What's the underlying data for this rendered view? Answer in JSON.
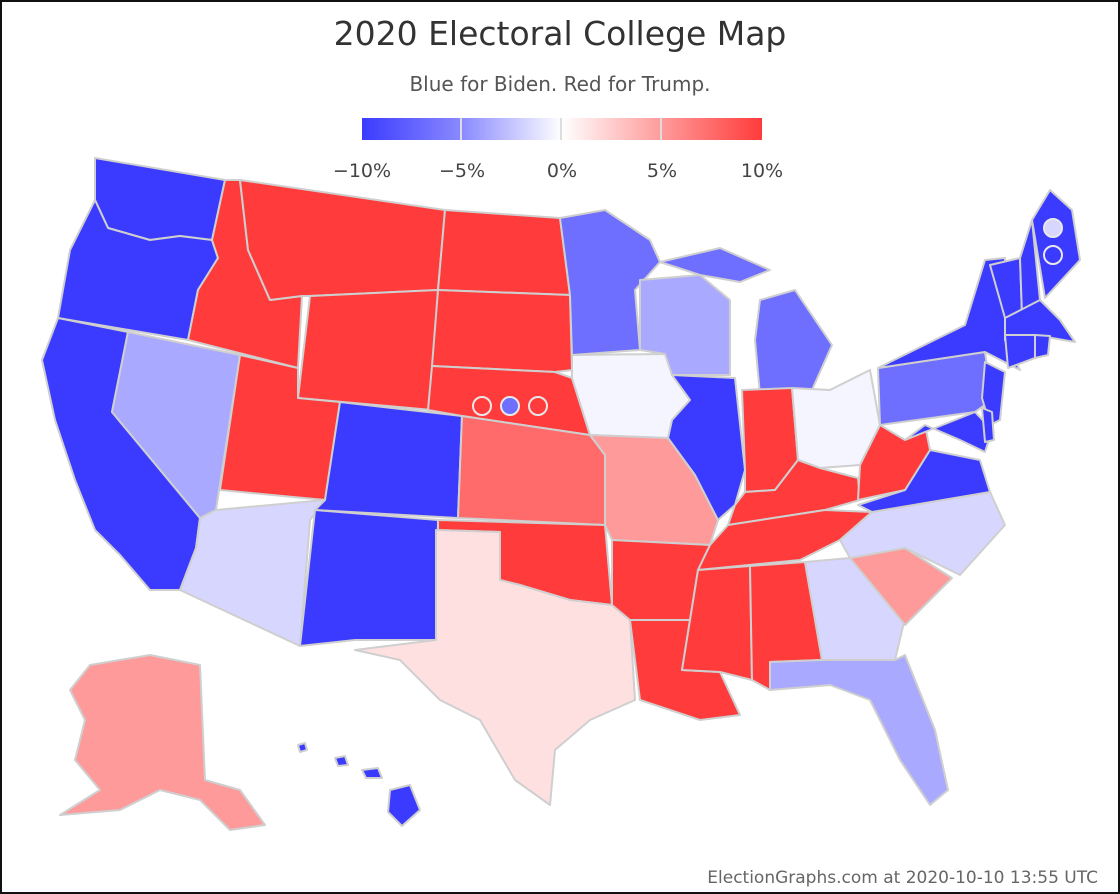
{
  "title": "2020 Electoral College Map",
  "subtitle": "Blue for Biden. Red for Trump.",
  "legend": {
    "ticks": [
      "−10%",
      "−5%",
      "0%",
      "5%",
      "10%"
    ],
    "colors": {
      "strong_blue": "#3b3bff",
      "blue": "#6e6eff",
      "light_blue": "#a9a9ff",
      "pale_blue": "#d6d6ff",
      "white": "#f5f5ff",
      "pale_red": "#ffe0e0",
      "light_red": "#ff9a9a",
      "red": "#ff6b6b",
      "strong_red": "#ff3b3b"
    }
  },
  "states": {
    "WA": "strong_blue",
    "OR": "strong_blue",
    "CA": "strong_blue",
    "NV": "light_blue",
    "ID": "strong_red",
    "MT": "strong_red",
    "WY": "strong_red",
    "UT": "strong_red",
    "AZ": "pale_blue",
    "CO": "strong_blue",
    "NM": "strong_blue",
    "ND": "strong_red",
    "SD": "strong_red",
    "NE": "strong_red",
    "KS": "red",
    "OK": "strong_red",
    "TX": "pale_red",
    "MN": "blue",
    "IA": "white",
    "MO": "light_red",
    "AR": "strong_red",
    "LA": "strong_red",
    "WI": "light_blue",
    "IL": "strong_blue",
    "MI": "blue",
    "IN": "strong_red",
    "OH": "white",
    "KY": "strong_red",
    "TN": "strong_red",
    "MS": "strong_red",
    "AL": "strong_red",
    "GA": "pale_blue",
    "FL": "light_blue",
    "SC": "light_red",
    "NC": "pale_blue",
    "VA": "strong_blue",
    "WV": "strong_red",
    "PA": "blue",
    "NY": "strong_blue",
    "NJ": "strong_blue",
    "DE": "strong_blue",
    "MD": "strong_blue",
    "CT": "strong_blue",
    "RI": "strong_blue",
    "MA": "strong_blue",
    "VT": "strong_blue",
    "NH": "strong_blue",
    "ME": "strong_blue",
    "AK": "light_red",
    "HI": "strong_blue"
  },
  "districts": {
    "NE": [
      "strong_red",
      "blue",
      "strong_red"
    ],
    "ME": [
      "pale_blue",
      "strong_blue"
    ]
  },
  "footer": "ElectionGraphs.com at 2020-10-10 13:55 UTC"
}
